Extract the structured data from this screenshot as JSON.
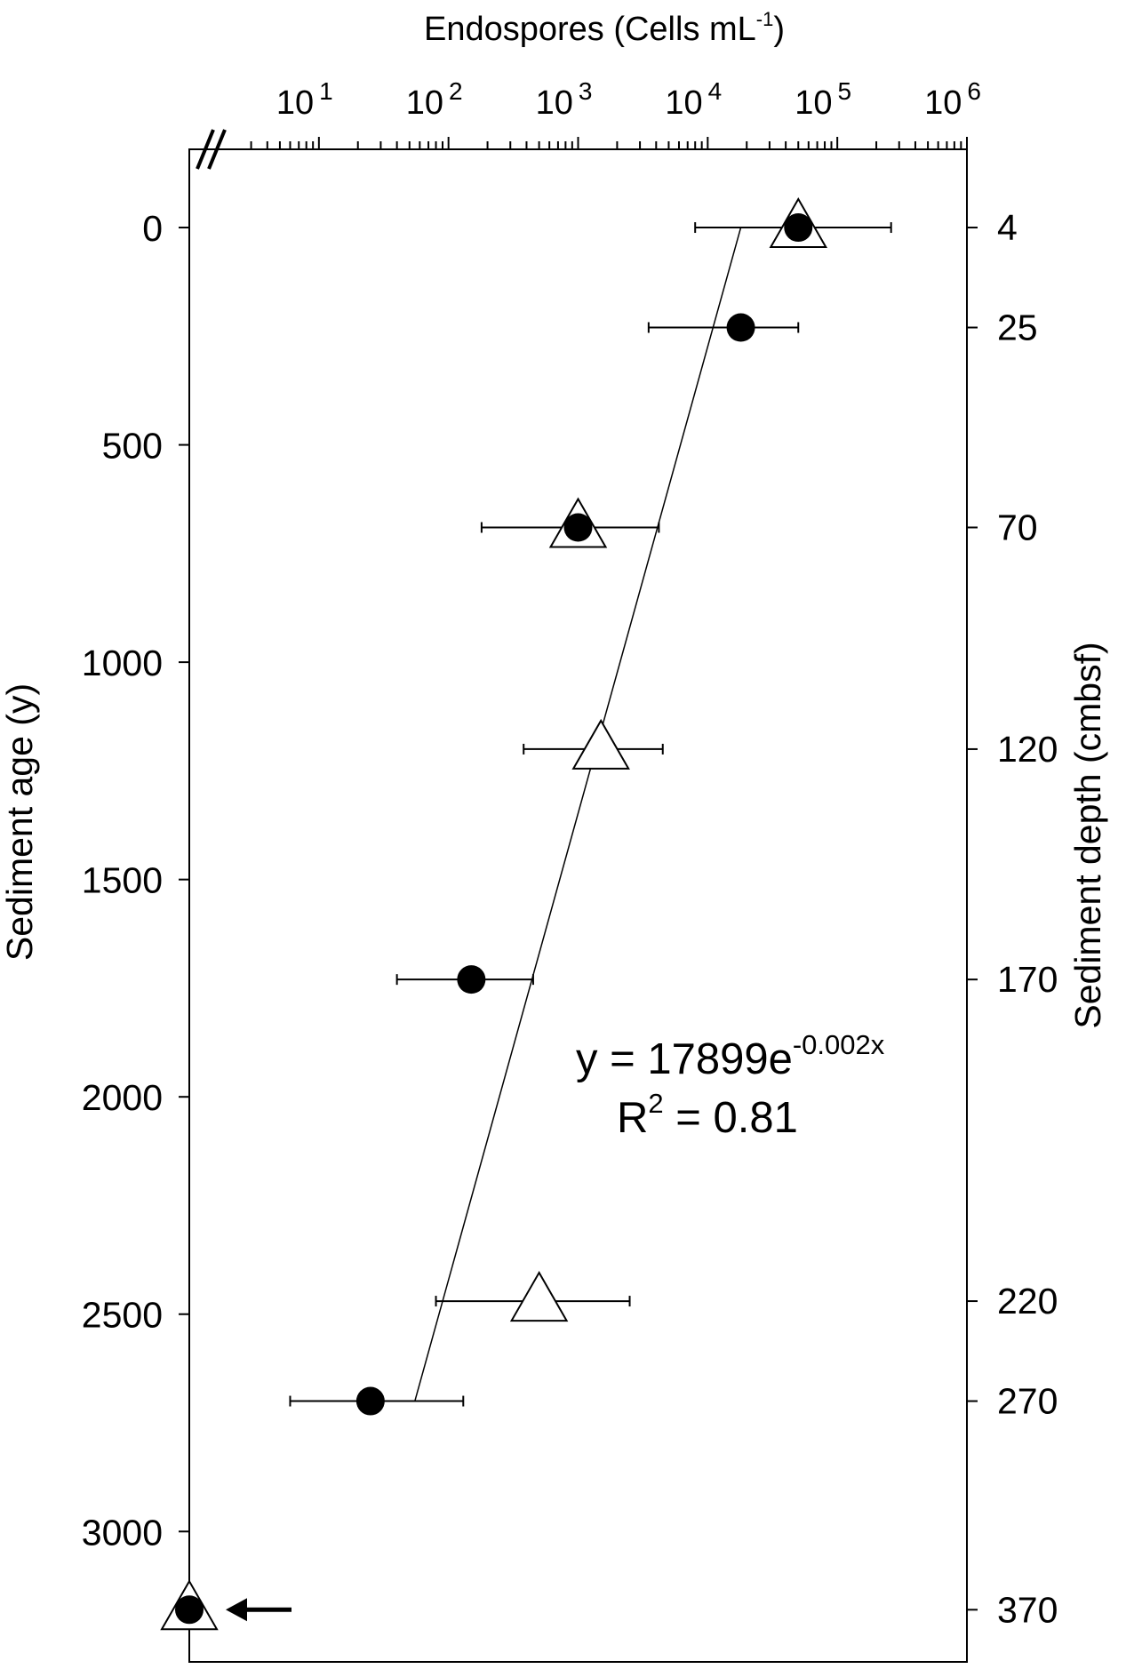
{
  "chart_data": {
    "type": "scatter",
    "title": "",
    "top_axis": {
      "label_main": "Endospores (Cells mL",
      "label_sup": "-1",
      "label_tail": ")",
      "scale": "log",
      "range": [
        1,
        1000000
      ],
      "ticks": [
        {
          "base": "10",
          "exp": "1",
          "value": 10
        },
        {
          "base": "10",
          "exp": "2",
          "value": 100
        },
        {
          "base": "10",
          "exp": "3",
          "value": 1000
        },
        {
          "base": "10",
          "exp": "4",
          "value": 10000
        },
        {
          "base": "10",
          "exp": "5",
          "value": 100000
        },
        {
          "base": "10",
          "exp": "6",
          "value": 1000000
        }
      ],
      "axis_break": true
    },
    "left_axis": {
      "label": "Sediment age (y)",
      "range": [
        -180,
        3300
      ],
      "ticks": [
        "0",
        "500",
        "1000",
        "1500",
        "2000",
        "2500",
        "3000"
      ]
    },
    "right_axis": {
      "label": "Sediment depth (cmbsf)",
      "ticks": [
        {
          "label": "4",
          "age": 0
        },
        {
          "label": "25",
          "age": 230
        },
        {
          "label": "70",
          "age": 690
        },
        {
          "label": "120",
          "age": 1200
        },
        {
          "label": "170",
          "age": 1730
        },
        {
          "label": "220",
          "age": 2470
        },
        {
          "label": "270",
          "age": 2700
        },
        {
          "label": "370",
          "age": 3180
        }
      ]
    },
    "series": [
      {
        "marker": "circle",
        "points": [
          {
            "age": 0,
            "value": 50000,
            "err_lo": 8000,
            "err_hi": 260000
          },
          {
            "age": 230,
            "value": 18000,
            "err_lo": 3500,
            "err_hi": 50000
          },
          {
            "age": 690,
            "value": 1000,
            "err_lo": 180,
            "err_hi": 4200
          },
          {
            "age": 1730,
            "value": 150,
            "err_lo": 40,
            "err_hi": 450
          },
          {
            "age": 2700,
            "value": 25,
            "err_lo": 6,
            "err_hi": 130
          },
          {
            "age": 3180,
            "value": 1
          }
        ]
      },
      {
        "marker": "triangle",
        "points": [
          {
            "age": 0,
            "value": 50000
          },
          {
            "age": 690,
            "value": 1000
          },
          {
            "age": 1200,
            "value": 1500,
            "err_lo": 380,
            "err_hi": 4500
          },
          {
            "age": 2470,
            "value": 500,
            "err_lo": 80,
            "err_hi": 2500
          },
          {
            "age": 3180,
            "value": 1
          }
        ]
      }
    ],
    "trendline": {
      "from": {
        "age": 0,
        "value": 18000
      },
      "to": {
        "age": 2700,
        "value": 55
      }
    },
    "annotation": {
      "eq_main": "y = 17899e",
      "eq_sup": "-0.002x",
      "r2_main": "R",
      "r2_sup": "2",
      "r2_tail": " = 0.81"
    },
    "arrow_marker": {
      "age": 3180,
      "direction": "left"
    }
  }
}
